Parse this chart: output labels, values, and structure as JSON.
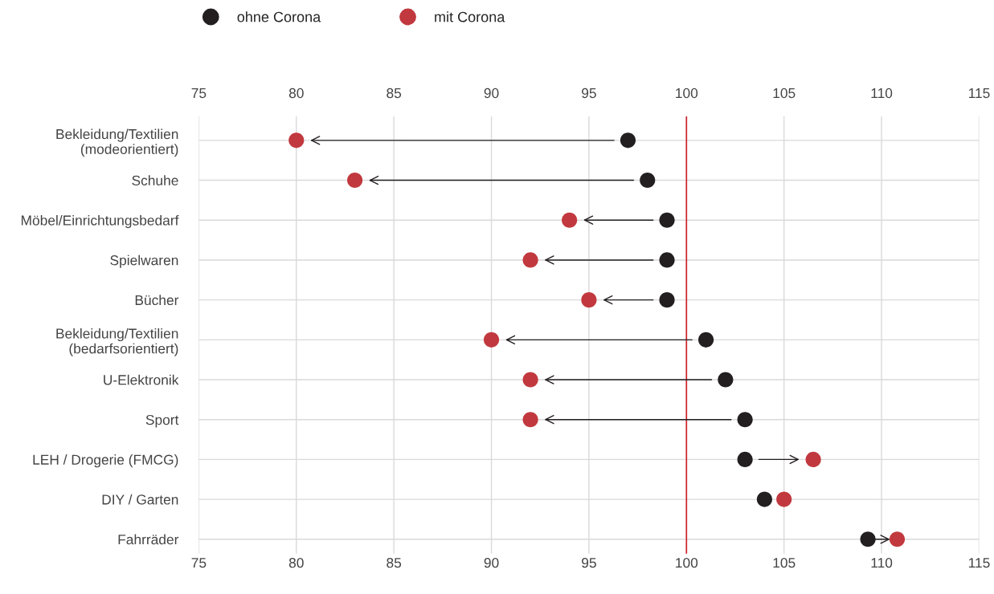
{
  "chart_data": {
    "type": "scatter",
    "categories": [
      "Bekleidung/Textilien\n(modeorientiert)",
      "Schuhe",
      "Möbel/Einrichtungsbedarf",
      "Spielwaren",
      "Bücher",
      "Bekleidung/Textilien\n(bedarfsorientiert)",
      "U-Elektronik",
      "Sport",
      "LEH / Drogerie (FMCG)",
      "DIY / Garten",
      "Fahrräder"
    ],
    "orientation": "horizontal",
    "series": [
      {
        "name": "ohne Corona",
        "color": "#231f20",
        "values": [
          97,
          98,
          99,
          99,
          99,
          101,
          102,
          103,
          103,
          104,
          109.3
        ]
      },
      {
        "name": "mit Corona",
        "color": "#c1393e",
        "values": [
          80,
          83,
          94,
          92,
          95,
          90,
          92,
          92,
          106.5,
          105,
          110.8
        ]
      }
    ],
    "xlim": [
      75,
      115
    ],
    "xticks": [
      75,
      80,
      85,
      90,
      95,
      100,
      105,
      110,
      115
    ],
    "x2lim": [
      75,
      115
    ],
    "x2ticks": [
      75,
      80,
      85,
      90,
      95,
      100,
      105,
      110,
      115
    ],
    "ref_lines": [
      {
        "axis": "x",
        "value": 100,
        "color": "#d0202a"
      }
    ],
    "grid": true,
    "legend": "top left",
    "marker": "circle"
  }
}
